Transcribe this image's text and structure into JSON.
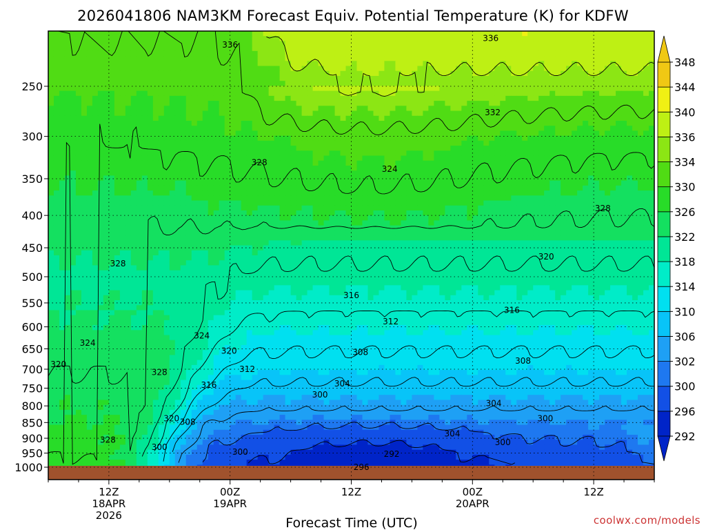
{
  "chart_data": {
    "type": "heatmap",
    "title": "2026041806 NAM3KM Forecast Equiv. Potential Temperature (K) for KDFW",
    "xlabel": "Forecast Time (UTC)",
    "ylabel": "",
    "x_unit": "hours since 2026-04-18 06Z",
    "x_range": [
      0,
      60
    ],
    "y_range_hPa": [
      1000,
      200
    ],
    "y_ticks": [
      "250",
      "300",
      "350",
      "400",
      "450",
      "500",
      "550",
      "600",
      "650",
      "700",
      "750",
      "800",
      "850",
      "900",
      "950",
      "1000"
    ],
    "x_ticks": [
      {
        "hour": 6,
        "lines": [
          "12Z",
          "18APR",
          "2026"
        ]
      },
      {
        "hour": 18,
        "lines": [
          "00Z",
          "19APR"
        ]
      },
      {
        "hour": 30,
        "lines": [
          "12Z"
        ]
      },
      {
        "hour": 42,
        "lines": [
          "00Z",
          "20APR"
        ]
      },
      {
        "hour": 54,
        "lines": [
          "12Z"
        ]
      }
    ],
    "colorbar": {
      "levels": [
        292,
        296,
        300,
        302,
        306,
        310,
        314,
        318,
        322,
        326,
        330,
        334,
        336,
        340,
        344,
        348
      ],
      "labels": [
        "348",
        "344",
        "340",
        "336",
        "334",
        "330",
        "326",
        "322",
        "318",
        "314",
        "310",
        "306",
        "302",
        "300",
        "296",
        "292"
      ],
      "colors": [
        "#0024c8",
        "#1250e6",
        "#1e78f0",
        "#1ea0f5",
        "#08c4f8",
        "#00e0f0",
        "#00ecc8",
        "#00e696",
        "#14e060",
        "#28dc28",
        "#50dc14",
        "#8ce614",
        "#bef014",
        "#f0f014",
        "#f0c814"
      ]
    },
    "contour_labels": [
      {
        "text": "336",
        "hour": 18.0,
        "p": 215
      },
      {
        "text": "336",
        "hour": 43.8,
        "p": 210
      },
      {
        "text": "332",
        "hour": 44.0,
        "p": 275
      },
      {
        "text": "328",
        "hour": 20.9,
        "p": 330
      },
      {
        "text": "324",
        "hour": 33.8,
        "p": 338
      },
      {
        "text": "328",
        "hour": 54.9,
        "p": 390
      },
      {
        "text": "320",
        "hour": 49.3,
        "p": 465
      },
      {
        "text": "328",
        "hour": 6.9,
        "p": 477
      },
      {
        "text": "316",
        "hour": 30.0,
        "p": 535
      },
      {
        "text": "316",
        "hour": 45.9,
        "p": 565
      },
      {
        "text": "312",
        "hour": 33.9,
        "p": 589
      },
      {
        "text": "324",
        "hour": 15.2,
        "p": 620
      },
      {
        "text": "324",
        "hour": 3.9,
        "p": 636
      },
      {
        "text": "320",
        "hour": 17.9,
        "p": 655
      },
      {
        "text": "308",
        "hour": 30.9,
        "p": 658
      },
      {
        "text": "320",
        "hour": 1.0,
        "p": 688
      },
      {
        "text": "308",
        "hour": 47.0,
        "p": 679
      },
      {
        "text": "312",
        "hour": 19.7,
        "p": 700
      },
      {
        "text": "328",
        "hour": 11.0,
        "p": 708
      },
      {
        "text": "304",
        "hour": 29.1,
        "p": 738
      },
      {
        "text": "316",
        "hour": 15.9,
        "p": 742
      },
      {
        "text": "300",
        "hour": 26.9,
        "p": 768
      },
      {
        "text": "304",
        "hour": 44.1,
        "p": 793
      },
      {
        "text": "320",
        "hour": 12.2,
        "p": 838
      },
      {
        "text": "308",
        "hour": 13.8,
        "p": 848
      },
      {
        "text": "300",
        "hour": 49.2,
        "p": 838
      },
      {
        "text": "304",
        "hour": 40.0,
        "p": 885
      },
      {
        "text": "328",
        "hour": 5.9,
        "p": 906
      },
      {
        "text": "300",
        "hour": 45.0,
        "p": 913
      },
      {
        "text": "300",
        "hour": 11.0,
        "p": 930
      },
      {
        "text": "300",
        "hour": 19.0,
        "p": 946
      },
      {
        "text": "292",
        "hour": 34.0,
        "p": 953
      },
      {
        "text": "296",
        "hour": 31.0,
        "p": 1000
      }
    ]
  },
  "credit": "coolwx.com/models"
}
